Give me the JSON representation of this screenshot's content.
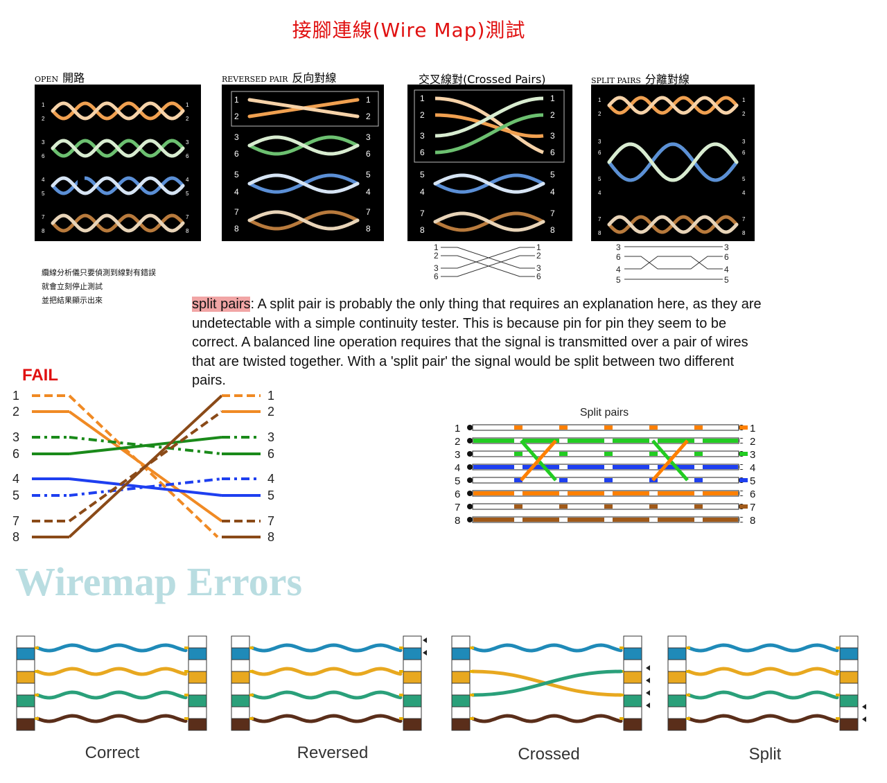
{
  "title": "接腳連線(Wire Map)測試",
  "panels": [
    {
      "eng": "OPEN",
      "zh": "開路",
      "pins": [
        "1",
        "2",
        "3",
        "6",
        "4",
        "5",
        "7",
        "8"
      ]
    },
    {
      "eng": "REVERSED PAIR",
      "zh": "反向對線",
      "pins": [
        "1",
        "2",
        "3",
        "6",
        "5",
        "4",
        "7",
        "8"
      ],
      "right_pins": [
        "1",
        "2",
        "3",
        "6",
        "5",
        "4",
        "7",
        "8"
      ]
    },
    {
      "label": "交叉線對(Crossed Pairs)",
      "pins": [
        "1",
        "2",
        "3",
        "6",
        "5",
        "4",
        "7",
        "8"
      ],
      "right_pins": [
        "1",
        "2",
        "3",
        "6",
        "5",
        "4",
        "7",
        "8"
      ]
    },
    {
      "eng": "SPLIT PAIRS",
      "zh": "分離對線",
      "pins": [
        "1",
        "2",
        "3",
        "6",
        "5",
        "4",
        "7",
        "8"
      ],
      "right_pins": [
        "1",
        "2",
        "3",
        "6",
        "5",
        "4",
        "7",
        "8"
      ]
    }
  ],
  "crossed_schematic": {
    "left": [
      "1",
      "2",
      "3",
      "6"
    ],
    "right": [
      "1",
      "2",
      "3",
      "6"
    ]
  },
  "split_schematic": {
    "left": [
      "3",
      "6",
      "4",
      "5"
    ],
    "right": [
      "3",
      "6",
      "4",
      "5"
    ]
  },
  "note_lines": [
    "纜線分析儀只要偵測到線對有錯誤",
    "就會立刻停止測試",
    "並把結果顯示出來"
  ],
  "split_desc": {
    "highlight": "split pairs",
    "text": ": A split pair is probably the only thing that requires an explanation here, as they are undetectable with a simple continuity tester. This is because pin for pin they seem to be correct. A balanced line operation requires that the signal is transmitted over a pair of wires that are twisted together. With a 'split pair' the signal would be split between two different pairs."
  },
  "fail": {
    "label": "FAIL",
    "pins": [
      "1",
      "2",
      "3",
      "6",
      "4",
      "5",
      "7",
      "8"
    ]
  },
  "split_pairs_diagram": {
    "title": "Split pairs",
    "pins": [
      "1",
      "2",
      "3",
      "4",
      "5",
      "6",
      "7",
      "8"
    ]
  },
  "wiremap_errors": "Wiremap Errors",
  "captions": [
    "Correct",
    "Reversed",
    "Crossed",
    "Split"
  ],
  "colors": {
    "orange": "#f08a24",
    "green": "#1a8a1a",
    "blue": "#1e3ff0",
    "brown": "#8a4a18",
    "title_red": "#e01010",
    "highlight": "#f1a5a5",
    "watermark": "#b9dde1"
  }
}
